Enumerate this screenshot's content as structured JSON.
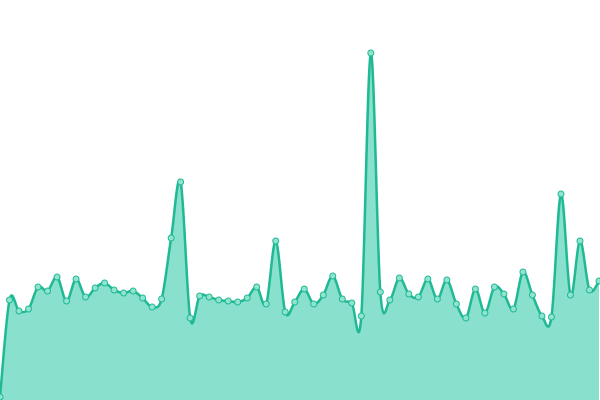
{
  "chart_data": {
    "type": "area",
    "line_color": "#1fb994",
    "fill_color": "#88e0cd",
    "point_color": "#8fe3cf",
    "ylim": [
      0,
      400
    ],
    "values": [
      3,
      100,
      89,
      91,
      113,
      109,
      123,
      99,
      121,
      103,
      112,
      117,
      110,
      107,
      109,
      102,
      93,
      101,
      162,
      218,
      82,
      104,
      103,
      100,
      99,
      98,
      102,
      113,
      96,
      159,
      88,
      98,
      111,
      96,
      105,
      124,
      101,
      97,
      84,
      347,
      108,
      100,
      122,
      106,
      103,
      121,
      101,
      120,
      96,
      82,
      111,
      87,
      113,
      106,
      91,
      128,
      105,
      84,
      83,
      206,
      105,
      159,
      110,
      119
    ]
  }
}
